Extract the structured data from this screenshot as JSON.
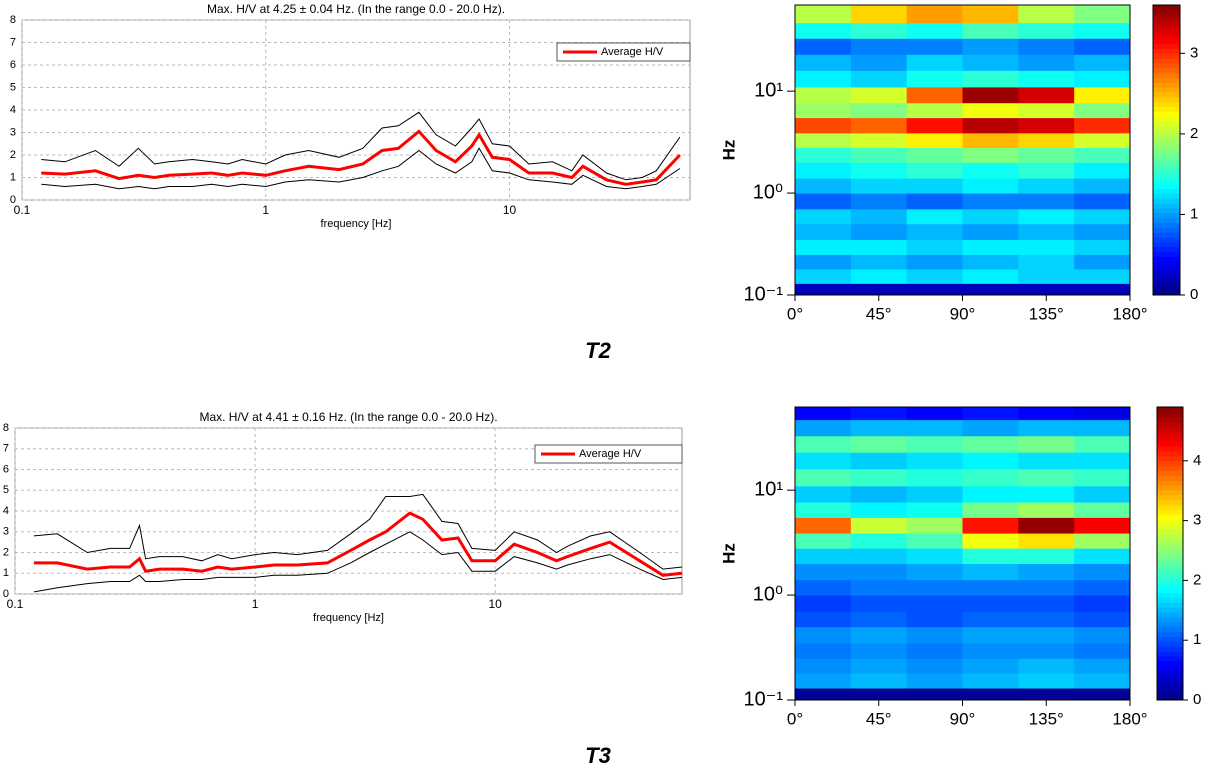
{
  "chart_data": [
    {
      "type": "line",
      "title": "Max. H/V at 4.25 ± 0.04 Hz. (In the range 0.0 - 20.0 Hz).",
      "x_label": "frequency [Hz]",
      "xscale": "log",
      "xlim": [
        0.1,
        55
      ],
      "xticks": [
        0.1,
        1,
        10
      ],
      "ylim": [
        0,
        8
      ],
      "yticks": [
        0,
        1,
        2,
        3,
        4,
        5,
        6,
        7,
        8
      ],
      "grid": true,
      "legend": "upper right",
      "x": [
        0.12,
        0.15,
        0.2,
        0.25,
        0.3,
        0.35,
        0.4,
        0.5,
        0.6,
        0.7,
        0.8,
        1,
        1.2,
        1.5,
        2,
        2.5,
        3,
        3.5,
        4.25,
        5,
        6,
        7,
        7.5,
        8.5,
        10,
        12,
        15,
        18,
        20,
        25,
        30,
        35,
        40,
        50
      ],
      "series": [
        {
          "color": "#000000",
          "values": [
            1.8,
            1.7,
            2.2,
            1.5,
            2.3,
            1.6,
            1.7,
            1.8,
            1.7,
            1.6,
            1.8,
            1.6,
            2.0,
            2.2,
            1.9,
            2.3,
            3.2,
            3.3,
            3.9,
            2.9,
            2.4,
            3.2,
            3.6,
            2.5,
            2.4,
            1.6,
            1.7,
            1.3,
            2.0,
            1.2,
            0.9,
            1.0,
            1.3,
            2.8
          ]
        },
        {
          "color": "#000000",
          "values": [
            0.7,
            0.6,
            0.7,
            0.5,
            0.6,
            0.5,
            0.6,
            0.6,
            0.7,
            0.6,
            0.7,
            0.6,
            0.8,
            0.9,
            0.8,
            1.0,
            1.3,
            1.5,
            2.2,
            1.6,
            1.2,
            1.7,
            2.3,
            1.3,
            1.2,
            0.9,
            0.8,
            0.7,
            1.1,
            0.6,
            0.5,
            0.6,
            0.7,
            1.4
          ]
        },
        {
          "name": "Average H/V",
          "color": "#ff0000",
          "values": [
            1.2,
            1.15,
            1.3,
            0.95,
            1.1,
            1.0,
            1.1,
            1.15,
            1.2,
            1.1,
            1.2,
            1.1,
            1.3,
            1.5,
            1.35,
            1.6,
            2.2,
            2.3,
            3.05,
            2.2,
            1.7,
            2.4,
            2.9,
            1.9,
            1.8,
            1.2,
            1.2,
            1.0,
            1.5,
            0.9,
            0.7,
            0.8,
            0.9,
            2.0
          ]
        }
      ]
    },
    {
      "type": "heatmap",
      "caption": "T2",
      "y_label": "Hz",
      "yscale": "log",
      "colormap": "jet",
      "x_edges": [
        0,
        30,
        60,
        90,
        120,
        150,
        180
      ],
      "xlim": [
        0,
        180
      ],
      "xticks": [
        {
          "value": 0,
          "label": "0°"
        },
        {
          "value": 45,
          "label": "45°"
        },
        {
          "value": 90,
          "label": "90°"
        },
        {
          "value": 135,
          "label": "135°"
        },
        {
          "value": 180,
          "label": "180°"
        }
      ],
      "y_edges": [
        0.1,
        0.13,
        0.18,
        0.25,
        0.35,
        0.5,
        0.7,
        1,
        1.4,
        2,
        2.8,
        3.9,
        5.5,
        7.7,
        11,
        16,
        23,
        33,
        47,
        70
      ],
      "ylim": [
        0.1,
        70
      ],
      "yticks": [
        {
          "value": 0.1,
          "label": "10⁻¹"
        },
        {
          "value": 1,
          "label": "10⁰"
        },
        {
          "value": 10,
          "label": "10¹"
        }
      ],
      "clim": [
        0,
        3.6
      ],
      "cticks": [
        0,
        1,
        2,
        3
      ],
      "values": [
        [
          0.2,
          0.2,
          0.2,
          0.2,
          0.2,
          0.2
        ],
        [
          1.2,
          1.3,
          1.2,
          1.3,
          1.2,
          1.2
        ],
        [
          1.0,
          1.1,
          1.0,
          1.1,
          1.2,
          1.0
        ],
        [
          1.3,
          1.3,
          1.2,
          1.3,
          1.3,
          1.2
        ],
        [
          1.1,
          1.0,
          1.1,
          1.0,
          1.1,
          1.0
        ],
        [
          1.2,
          1.1,
          1.3,
          1.2,
          1.3,
          1.2
        ],
        [
          0.8,
          0.9,
          0.8,
          0.9,
          0.9,
          0.8
        ],
        [
          1.1,
          1.2,
          1.2,
          1.3,
          1.2,
          1.1
        ],
        [
          1.3,
          1.4,
          1.5,
          1.4,
          1.5,
          1.3
        ],
        [
          1.5,
          1.6,
          1.7,
          1.8,
          1.7,
          1.6
        ],
        [
          2.0,
          2.1,
          2.3,
          2.5,
          2.4,
          2.1
        ],
        [
          2.9,
          2.8,
          3.1,
          3.4,
          3.3,
          3.0
        ],
        [
          1.9,
          1.8,
          2.0,
          2.2,
          2.1,
          1.8
        ],
        [
          2.0,
          2.1,
          2.8,
          3.5,
          3.3,
          2.3
        ],
        [
          1.3,
          1.2,
          1.4,
          1.5,
          1.4,
          1.3
        ],
        [
          1.1,
          1.0,
          1.2,
          1.1,
          1.0,
          1.1
        ],
        [
          0.8,
          0.9,
          0.9,
          1.0,
          0.9,
          0.8
        ],
        [
          1.4,
          1.5,
          1.4,
          1.6,
          1.5,
          1.4
        ],
        [
          2.0,
          2.4,
          2.6,
          2.5,
          2.0,
          1.8
        ]
      ]
    },
    {
      "type": "line",
      "title": "Max. H/V at 4.41 ± 0.16 Hz. (In the range 0.0 - 20.0 Hz).",
      "x_label": "frequency [Hz]",
      "xscale": "log",
      "xlim": [
        0.1,
        60
      ],
      "xticks": [
        0.1,
        1,
        10
      ],
      "ylim": [
        0,
        8
      ],
      "yticks": [
        0,
        1,
        2,
        3,
        4,
        5,
        6,
        7,
        8
      ],
      "grid": true,
      "legend": "upper right",
      "x": [
        0.12,
        0.15,
        0.2,
        0.25,
        0.3,
        0.33,
        0.35,
        0.4,
        0.5,
        0.6,
        0.7,
        0.8,
        1,
        1.2,
        1.5,
        2,
        2.5,
        3,
        3.5,
        4.41,
        5,
        6,
        7,
        8,
        10,
        12,
        15,
        18,
        20,
        25,
        30,
        40,
        50,
        60
      ],
      "series": [
        {
          "color": "#000000",
          "values": [
            2.8,
            2.9,
            2.0,
            2.2,
            2.2,
            3.3,
            1.7,
            1.8,
            1.8,
            1.6,
            1.9,
            1.7,
            1.9,
            2.0,
            1.9,
            2.1,
            2.9,
            3.6,
            4.7,
            4.7,
            4.8,
            3.5,
            3.4,
            2.2,
            2.1,
            3.0,
            2.6,
            2.0,
            2.3,
            2.8,
            3.0,
            2.0,
            1.2,
            1.3
          ]
        },
        {
          "color": "#000000",
          "values": [
            0.1,
            0.3,
            0.5,
            0.6,
            0.6,
            0.9,
            0.6,
            0.6,
            0.7,
            0.7,
            0.8,
            0.8,
            0.8,
            0.9,
            0.9,
            1.0,
            1.5,
            2.0,
            2.4,
            3.0,
            2.6,
            1.9,
            2.0,
            1.1,
            1.1,
            1.8,
            1.5,
            1.2,
            1.4,
            1.7,
            1.9,
            1.2,
            0.7,
            0.8
          ]
        },
        {
          "name": "Average H/V",
          "color": "#ff0000",
          "values": [
            1.5,
            1.5,
            1.2,
            1.3,
            1.3,
            1.7,
            1.1,
            1.2,
            1.2,
            1.1,
            1.3,
            1.2,
            1.3,
            1.4,
            1.4,
            1.5,
            2.1,
            2.6,
            3.0,
            3.9,
            3.6,
            2.6,
            2.7,
            1.6,
            1.6,
            2.4,
            2.0,
            1.6,
            1.8,
            2.2,
            2.5,
            1.6,
            0.9,
            1.0
          ]
        }
      ]
    },
    {
      "type": "heatmap",
      "caption": "T3",
      "y_label": "Hz",
      "yscale": "log",
      "colormap": "jet",
      "x_edges": [
        0,
        30,
        60,
        90,
        120,
        150,
        180
      ],
      "xlim": [
        0,
        180
      ],
      "xticks": [
        {
          "value": 0,
          "label": "0°"
        },
        {
          "value": 45,
          "label": "45°"
        },
        {
          "value": 90,
          "label": "90°"
        },
        {
          "value": 135,
          "label": "135°"
        },
        {
          "value": 180,
          "label": "180°"
        }
      ],
      "y_edges": [
        0.1,
        0.13,
        0.18,
        0.25,
        0.35,
        0.5,
        0.7,
        1,
        1.4,
        2,
        2.8,
        3.9,
        5.5,
        7.7,
        11,
        16,
        23,
        33,
        47,
        62
      ],
      "ylim": [
        0.1,
        62
      ],
      "yticks": [
        {
          "value": 0.1,
          "label": "10⁻¹"
        },
        {
          "value": 1,
          "label": "10⁰"
        },
        {
          "value": 10,
          "label": "10¹"
        }
      ],
      "clim": [
        0,
        4.9
      ],
      "cticks": [
        0,
        1,
        2,
        3,
        4
      ],
      "values": [
        [
          0.1,
          0.1,
          0.1,
          0.1,
          0.1,
          0.1
        ],
        [
          1.4,
          1.5,
          1.4,
          1.5,
          1.6,
          1.5
        ],
        [
          1.3,
          1.4,
          1.3,
          1.4,
          1.5,
          1.4
        ],
        [
          1.2,
          1.3,
          1.2,
          1.3,
          1.3,
          1.2
        ],
        [
          1.3,
          1.4,
          1.3,
          1.4,
          1.4,
          1.3
        ],
        [
          1.0,
          1.1,
          1.0,
          1.1,
          1.1,
          1.0
        ],
        [
          0.9,
          1.0,
          1.0,
          1.0,
          1.0,
          0.9
        ],
        [
          1.1,
          1.2,
          1.2,
          1.2,
          1.2,
          1.1
        ],
        [
          1.3,
          1.3,
          1.4,
          1.5,
          1.4,
          1.3
        ],
        [
          1.6,
          1.6,
          1.7,
          2.0,
          2.0,
          1.7
        ],
        [
          2.2,
          2.0,
          2.2,
          3.0,
          3.2,
          2.6
        ],
        [
          3.8,
          2.8,
          2.6,
          4.2,
          4.8,
          4.3
        ],
        [
          2.0,
          1.8,
          1.9,
          2.4,
          2.6,
          2.3
        ],
        [
          1.6,
          1.5,
          1.6,
          1.8,
          1.8,
          1.6
        ],
        [
          2.2,
          2.1,
          2.0,
          2.1,
          2.2,
          2.1
        ],
        [
          1.7,
          1.6,
          1.7,
          1.8,
          1.7,
          1.7
        ],
        [
          2.2,
          2.3,
          2.2,
          2.3,
          2.4,
          2.2
        ],
        [
          1.4,
          1.5,
          1.5,
          1.4,
          1.5,
          1.5
        ],
        [
          0.6,
          0.7,
          0.6,
          0.7,
          0.6,
          0.5
        ]
      ]
    }
  ]
}
